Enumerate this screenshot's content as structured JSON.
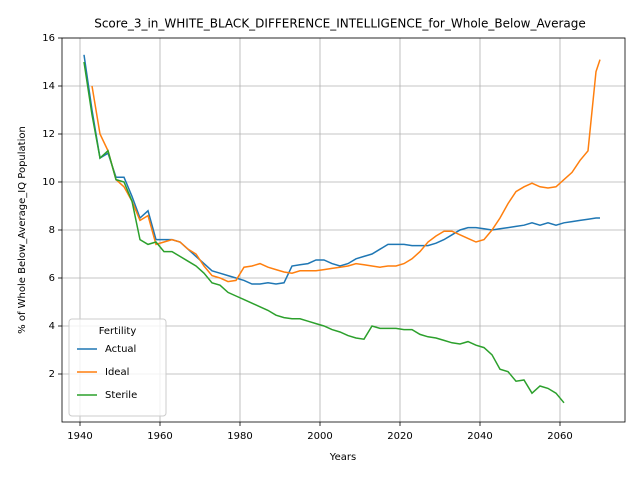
{
  "chart_data": {
    "type": "line",
    "title": "Score_3_in_WHITE_BLACK_DIFFERENCE_INTELLIGENCE_for_Whole_Below_Average",
    "xlabel": "Years",
    "ylabel": "% of Whole Below_Average_IQ Population",
    "x": [
      1941,
      1943,
      1945,
      1947,
      1949,
      1951,
      1953,
      1955,
      1957,
      1959,
      1961,
      1963,
      1965,
      1967,
      1969,
      1971,
      1973,
      1975,
      1977,
      1979,
      1981,
      1983,
      1985,
      1987,
      1989,
      1991,
      1993,
      1995,
      1997,
      1999,
      2001,
      2003,
      2005,
      2007,
      2009,
      2011,
      2013,
      2015,
      2017,
      2019,
      2021,
      2023,
      2025,
      2027,
      2029,
      2031,
      2033,
      2035,
      2037,
      2039,
      2041,
      2043,
      2045,
      2047,
      2049,
      2051,
      2053,
      2055,
      2057,
      2059,
      2061,
      2063,
      2065,
      2067,
      2069,
      2070
    ],
    "series": [
      {
        "name": "Actual",
        "color": "#1f77b4",
        "values": [
          15.3,
          13.0,
          11.0,
          11.2,
          10.2,
          10.2,
          9.4,
          8.5,
          8.8,
          7.6,
          7.6,
          7.6,
          7.5,
          7.2,
          6.9,
          6.6,
          6.3,
          6.2,
          6.1,
          6.0,
          5.9,
          5.75,
          5.75,
          5.8,
          5.75,
          5.8,
          6.5,
          6.55,
          6.6,
          6.75,
          6.75,
          6.6,
          6.5,
          6.6,
          6.8,
          6.9,
          7.0,
          7.2,
          7.4,
          7.4,
          7.4,
          7.35,
          7.35,
          7.35,
          7.45,
          7.6,
          7.8,
          8.0,
          8.1,
          8.1,
          8.05,
          8.0,
          8.05,
          8.1,
          8.15,
          8.2,
          8.3,
          8.2,
          8.3,
          8.2,
          8.3,
          8.35,
          8.4,
          8.45,
          8.5,
          8.5
        ]
      },
      {
        "name": "Ideal",
        "color": "#ff7f0e",
        "values": [
          null,
          14.0,
          12.0,
          11.3,
          10.1,
          9.8,
          9.2,
          8.4,
          8.6,
          7.4,
          7.5,
          7.6,
          7.5,
          7.2,
          7.0,
          6.5,
          6.1,
          6.0,
          5.85,
          5.9,
          6.45,
          6.5,
          6.6,
          6.45,
          6.35,
          6.25,
          6.2,
          6.3,
          6.3,
          6.3,
          6.35,
          6.4,
          6.45,
          6.5,
          6.6,
          6.55,
          6.5,
          6.45,
          6.5,
          6.5,
          6.6,
          6.8,
          7.1,
          7.5,
          7.75,
          7.95,
          7.95,
          7.8,
          7.65,
          7.5,
          7.6,
          8.0,
          8.5,
          9.1,
          9.6,
          9.8,
          9.95,
          9.8,
          9.75,
          9.8,
          10.1,
          10.4,
          10.9,
          11.3,
          14.6,
          15.1
        ]
      },
      {
        "name": "Sterile",
        "color": "#2ca02c",
        "values": [
          15.0,
          12.8,
          11.0,
          11.3,
          10.1,
          10.0,
          9.2,
          7.6,
          7.4,
          7.5,
          7.1,
          7.1,
          6.9,
          6.7,
          6.5,
          6.2,
          5.8,
          5.7,
          5.4,
          5.25,
          5.1,
          4.95,
          4.8,
          4.65,
          4.45,
          4.35,
          4.3,
          4.3,
          4.2,
          4.1,
          4.0,
          3.85,
          3.75,
          3.6,
          3.5,
          3.45,
          4.0,
          3.9,
          3.9,
          3.9,
          3.85,
          3.85,
          3.65,
          3.55,
          3.5,
          3.4,
          3.3,
          3.25,
          3.35,
          3.2,
          3.1,
          2.8,
          2.2,
          2.1,
          1.7,
          1.75,
          1.2,
          1.5,
          1.4,
          1.2,
          0.8,
          null,
          null,
          null,
          null,
          null
        ]
      }
    ],
    "xlim": [
      1935.5,
      2076.25
    ],
    "xticks": [
      1940,
      1960,
      1980,
      2000,
      2020,
      2040,
      2060
    ],
    "ylim": [
      0,
      16
    ],
    "yticks": [
      2,
      4,
      6,
      8,
      10,
      12,
      14,
      16
    ],
    "grid": true,
    "legend_title": "Fertility",
    "legend_loc": "lower left"
  }
}
